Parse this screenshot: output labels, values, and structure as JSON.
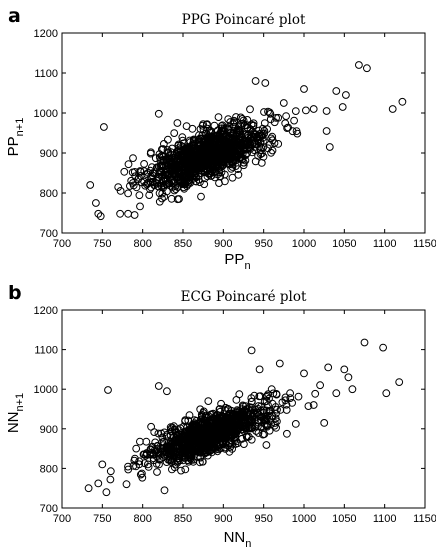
{
  "chart_data": [
    {
      "panel": "a",
      "type": "scatter",
      "title": "PPG Poincaré plot",
      "xlabel": "PP",
      "xlabel_sub": "n",
      "ylabel": "PP",
      "ylabel_sub": "n+1",
      "xlim": [
        700,
        1150
      ],
      "ylim": [
        700,
        1200
      ],
      "xticks": [
        700,
        750,
        800,
        850,
        900,
        950,
        1000,
        1050,
        1100,
        1150
      ],
      "yticks": [
        700,
        800,
        900,
        1000,
        1100,
        1200
      ],
      "grid": false,
      "marker": "open-circle",
      "outliers": [
        [
          735,
          820
        ],
        [
          742,
          775
        ],
        [
          745,
          748
        ],
        [
          748,
          742
        ],
        [
          752,
          965
        ],
        [
          772,
          748
        ],
        [
          782,
          748
        ],
        [
          790,
          745
        ],
        [
          820,
          998
        ],
        [
          830,
          822
        ],
        [
          843,
          975
        ],
        [
          845,
          785
        ],
        [
          872,
          850
        ],
        [
          880,
          940
        ],
        [
          940,
          1080
        ],
        [
          952,
          1075
        ],
        [
          968,
          988
        ],
        [
          975,
          1025
        ],
        [
          1000,
          1060
        ],
        [
          1012,
          1010
        ],
        [
          1028,
          1005
        ],
        [
          1028,
          955
        ],
        [
          1032,
          915
        ],
        [
          1048,
          1015
        ],
        [
          1052,
          1045
        ],
        [
          1068,
          1120
        ],
        [
          1078,
          1112
        ],
        [
          1110,
          1010
        ],
        [
          1122,
          1028
        ],
        [
          1040,
          1055
        ]
      ],
      "cluster": {
        "center": [
          880,
          895
        ],
        "spread_x": 38,
        "slope": 0.72,
        "spread_y": 30,
        "count": 1100
      }
    },
    {
      "panel": "b",
      "type": "scatter",
      "title": "ECG Poincaré plot",
      "xlabel": "NN",
      "xlabel_sub": "n",
      "ylabel": "NN",
      "ylabel_sub": "n+1",
      "xlim": [
        700,
        1150
      ],
      "ylim": [
        700,
        1200
      ],
      "xticks": [
        700,
        750,
        800,
        850,
        900,
        950,
        1000,
        1050,
        1100,
        1150
      ],
      "yticks": [
        700,
        800,
        900,
        1000,
        1100,
        1200
      ],
      "grid": false,
      "marker": "open-circle",
      "outliers": [
        [
          733,
          750
        ],
        [
          745,
          762
        ],
        [
          750,
          810
        ],
        [
          755,
          740
        ],
        [
          757,
          998
        ],
        [
          760,
          772
        ],
        [
          780,
          760
        ],
        [
          805,
          835
        ],
        [
          820,
          1008
        ],
        [
          830,
          995
        ],
        [
          845,
          870
        ],
        [
          935,
          1098
        ],
        [
          945,
          1050
        ],
        [
          960,
          1000
        ],
        [
          970,
          1065
        ],
        [
          1000,
          1040
        ],
        [
          1012,
          960
        ],
        [
          1025,
          915
        ],
        [
          1030,
          1055
        ],
        [
          1050,
          1050
        ],
        [
          1055,
          1030
        ],
        [
          1060,
          1000
        ],
        [
          1075,
          1118
        ],
        [
          1098,
          1105
        ],
        [
          1102,
          990
        ],
        [
          1118,
          1018
        ],
        [
          1040,
          990
        ],
        [
          1020,
          1010
        ]
      ],
      "cluster": {
        "center": [
          885,
          888
        ],
        "spread_x": 38,
        "slope": 0.74,
        "spread_y": 25,
        "count": 1100
      }
    }
  ]
}
